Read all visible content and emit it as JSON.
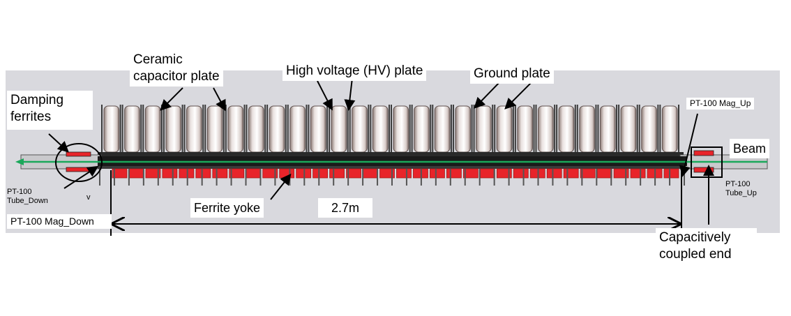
{
  "colors": {
    "background_panel": "#d9d9de",
    "plate_light": "#f4efee",
    "plate_dark": "#9a8a86",
    "ferrite": "#e8242a",
    "ferrite_dark": "#a01818",
    "beam": "#1aa85a",
    "tube": "#111111"
  },
  "labels": {
    "ceramic": [
      "Ceramic",
      "capacitor plate"
    ],
    "hv": "High voltage (HV) plate",
    "ground": "Ground plate",
    "damping": [
      "Damping",
      "ferrites"
    ],
    "pt100_mag_up": "PT-100 Mag_Up",
    "beam": "Beam",
    "pt100_tube_down": [
      "PT-100",
      "Tube_Down"
    ],
    "v_mark": "v",
    "pt100_mag_down": "PT-100 Mag_Down",
    "ferrite_yoke": "Ferrite yoke",
    "length": "2.7m",
    "pt100_tube_up": [
      "PT-100",
      "Tube_Up"
    ],
    "capacitive": [
      "Capacitively",
      "coupled end"
    ]
  }
}
